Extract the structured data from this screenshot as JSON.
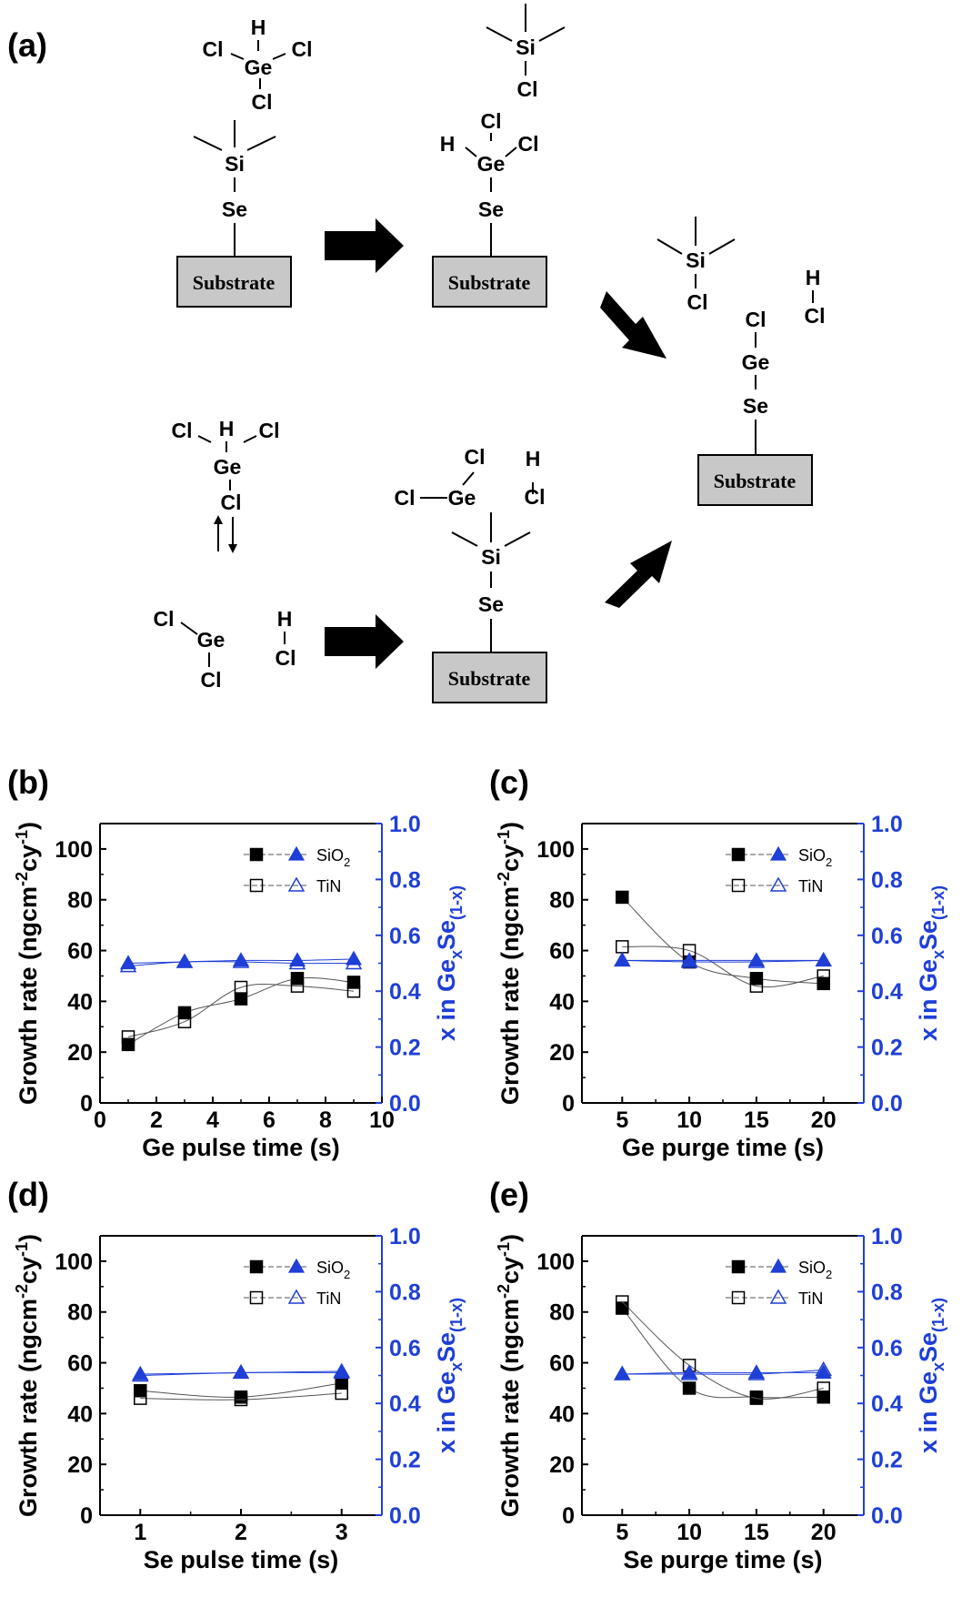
{
  "figure": {
    "panel_labels": [
      "(a)",
      "(b)",
      "(c)",
      "(d)",
      "(e)"
    ],
    "substrate_label": "Substrate",
    "atoms": {
      "cl": "Cl",
      "h": "H",
      "ge": "Ge",
      "si": "Si",
      "se": "Se"
    }
  },
  "colors": {
    "left_axis": "#000000",
    "right_axis": "#1f3fd6",
    "series_ge_fraction": "#1f3fd6",
    "substrate_fill": "#c8c8c8"
  },
  "chart_data": [
    {
      "panel": "(b)",
      "type": "scatter",
      "xlabel": "Ge pulse time (s)",
      "ylabel": "Growth rate (ngcm-2cy-1)",
      "y2label": "x in GexSe(1-x)",
      "xlim": [
        0,
        10
      ],
      "xticks": [
        0,
        2,
        4,
        6,
        8,
        10
      ],
      "ylim": [
        0,
        110
      ],
      "yticks": [
        0,
        20,
        40,
        60,
        80,
        100
      ],
      "y2lim": [
        0.0,
        1.0
      ],
      "y2ticks": [
        0.0,
        0.2,
        0.4,
        0.6,
        0.8,
        1.0
      ],
      "legend": {
        "placement": "top-right",
        "entries": [
          {
            "label": "SiO",
            "sub": "2"
          },
          {
            "label": "TiN",
            "sub": ""
          }
        ]
      },
      "series": [
        {
          "name": "SiO2",
          "axis": "left",
          "marker": "square-filled",
          "x": [
            1,
            3,
            5,
            7,
            9
          ],
          "values": [
            23,
            35.5,
            41,
            49,
            47.5
          ]
        },
        {
          "name": "TiN",
          "axis": "left",
          "marker": "square-open",
          "x": [
            1,
            3,
            5,
            7,
            9
          ],
          "values": [
            26,
            32,
            45.5,
            46,
            44
          ]
        },
        {
          "name": "SiO2",
          "axis": "right",
          "marker": "triangle-filled",
          "x": [
            1,
            3,
            5,
            7,
            9
          ],
          "values": [
            0.5,
            0.505,
            0.51,
            0.51,
            0.515
          ]
        },
        {
          "name": "TiN",
          "axis": "right",
          "marker": "triangle-open",
          "x": [
            1,
            3,
            5,
            7,
            9
          ],
          "values": [
            0.49,
            0.505,
            0.505,
            0.5,
            0.5
          ]
        }
      ]
    },
    {
      "panel": "(c)",
      "type": "scatter",
      "xlabel": "Ge purge time (s)",
      "ylabel": "Growth rate (ngcm-2cy-1)",
      "y2label": "x in GexSe(1-x)",
      "xlim": [
        2,
        23
      ],
      "xticks": [
        5,
        10,
        15,
        20
      ],
      "ylim": [
        0,
        110
      ],
      "yticks": [
        0,
        20,
        40,
        60,
        80,
        100
      ],
      "y2lim": [
        0.0,
        1.0
      ],
      "y2ticks": [
        0.0,
        0.2,
        0.4,
        0.6,
        0.8,
        1.0
      ],
      "legend": {
        "placement": "top-right",
        "entries": [
          {
            "label": "SiO",
            "sub": "2"
          },
          {
            "label": "TiN",
            "sub": ""
          }
        ]
      },
      "series": [
        {
          "name": "SiO2",
          "axis": "left",
          "marker": "square-filled",
          "x": [
            5,
            10,
            15,
            20
          ],
          "values": [
            81,
            55.5,
            49,
            47
          ]
        },
        {
          "name": "TiN",
          "axis": "left",
          "marker": "square-open",
          "x": [
            5,
            10,
            15,
            20
          ],
          "values": [
            61.5,
            60,
            46,
            50
          ]
        },
        {
          "name": "SiO2",
          "axis": "right",
          "marker": "triangle-filled",
          "x": [
            5,
            10,
            15,
            20
          ],
          "values": [
            0.51,
            0.51,
            0.51,
            0.51
          ]
        },
        {
          "name": "TiN",
          "axis": "right",
          "marker": "triangle-open",
          "x": [
            5,
            10,
            15,
            20
          ],
          "values": [
            0.51,
            0.505,
            0.505,
            0.51
          ]
        }
      ]
    },
    {
      "panel": "(d)",
      "type": "scatter",
      "xlabel": "Se pulse time (s)",
      "ylabel": "Growth rate (ngcm-2cy-1)",
      "y2label": "x in GexSe(1-x)",
      "xlim": [
        0.6,
        3.4
      ],
      "xticks": [
        1,
        2,
        3
      ],
      "ylim": [
        0,
        110
      ],
      "yticks": [
        0,
        20,
        40,
        60,
        80,
        100
      ],
      "y2lim": [
        0.0,
        1.0
      ],
      "y2ticks": [
        0.0,
        0.2,
        0.4,
        0.6,
        0.8,
        1.0
      ],
      "legend": {
        "placement": "top-right",
        "entries": [
          {
            "label": "SiO",
            "sub": "2"
          },
          {
            "label": "TiN",
            "sub": ""
          }
        ]
      },
      "series": [
        {
          "name": "SiO2",
          "axis": "left",
          "marker": "square-filled",
          "x": [
            1,
            2,
            3
          ],
          "values": [
            49,
            46.5,
            52
          ]
        },
        {
          "name": "TiN",
          "axis": "left",
          "marker": "square-open",
          "x": [
            1,
            2,
            3
          ],
          "values": [
            46,
            45.5,
            48
          ]
        },
        {
          "name": "SiO2",
          "axis": "right",
          "marker": "triangle-filled",
          "x": [
            1,
            2,
            3
          ],
          "values": [
            0.505,
            0.51,
            0.515
          ]
        },
        {
          "name": "TiN",
          "axis": "right",
          "marker": "triangle-open",
          "x": [
            1,
            2,
            3
          ],
          "values": [
            0.5,
            0.51,
            0.51
          ]
        }
      ]
    },
    {
      "panel": "(e)",
      "type": "scatter",
      "xlabel": "Se purge time (s)",
      "ylabel": "Growth rate (ngcm-2cy-1)",
      "y2label": "x in GexSe(1-x)",
      "xlim": [
        2,
        23
      ],
      "xticks": [
        5,
        10,
        15,
        20
      ],
      "ylim": [
        0,
        110
      ],
      "yticks": [
        0,
        20,
        40,
        60,
        80,
        100
      ],
      "y2lim": [
        0.0,
        1.0
      ],
      "y2ticks": [
        0.0,
        0.2,
        0.4,
        0.6,
        0.8,
        1.0
      ],
      "legend": {
        "placement": "top-right",
        "entries": [
          {
            "label": "SiO",
            "sub": "2"
          },
          {
            "label": "TiN",
            "sub": ""
          }
        ]
      },
      "series": [
        {
          "name": "SiO2",
          "axis": "left",
          "marker": "square-filled",
          "x": [
            5,
            10,
            15,
            20
          ],
          "values": [
            81.5,
            50,
            46.5,
            46.5
          ]
        },
        {
          "name": "TiN",
          "axis": "left",
          "marker": "square-open",
          "x": [
            5,
            10,
            15,
            20
          ],
          "values": [
            84,
            59,
            46,
            50
          ]
        },
        {
          "name": "SiO2",
          "axis": "right",
          "marker": "triangle-filled",
          "x": [
            5,
            10,
            15,
            20
          ],
          "values": [
            0.505,
            0.51,
            0.51,
            0.51
          ]
        },
        {
          "name": "TiN",
          "axis": "right",
          "marker": "triangle-open",
          "x": [
            5,
            10,
            15,
            20
          ],
          "values": [
            0.505,
            0.505,
            0.505,
            0.52
          ]
        }
      ]
    }
  ]
}
